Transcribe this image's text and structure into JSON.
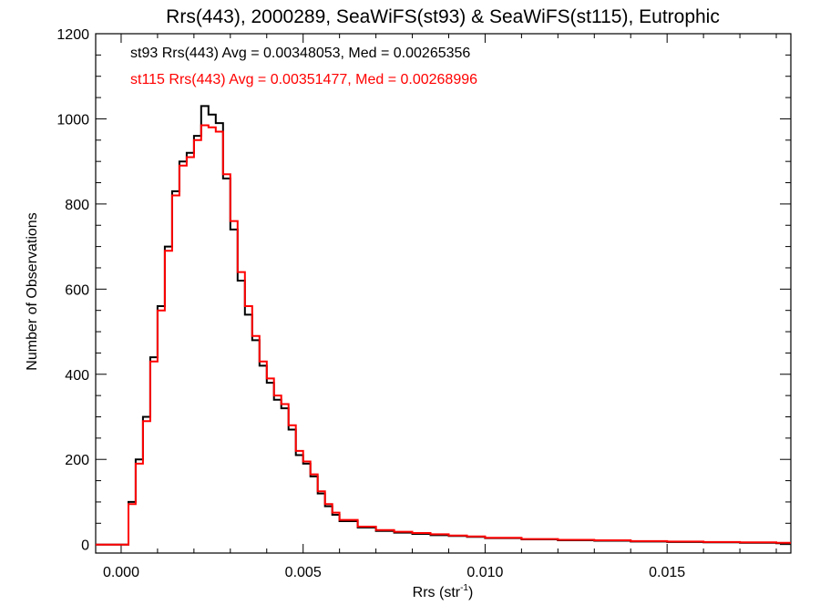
{
  "chart_data": {
    "type": "line",
    "subtype": "step-histogram",
    "title": "Rrs(443), 2000289, SeaWiFS(st93) & SeaWiFS(st115), Eutrophic",
    "xlabel_main": "Rrs (str",
    "xlabel_sup": "-1",
    "xlabel_close": ")",
    "ylabel": "Number of Observations",
    "xlim": [
      -0.0007,
      0.0184
    ],
    "ylim": [
      -20,
      1200
    ],
    "x_ticks": [
      0.0,
      0.005,
      0.01,
      0.015
    ],
    "x_tick_labels": [
      "0.000",
      "0.005",
      "0.010",
      "0.015"
    ],
    "y_ticks": [
      0,
      200,
      400,
      600,
      800,
      1000,
      1200
    ],
    "y_tick_labels": [
      "0",
      "200",
      "400",
      "600",
      "800",
      "1000",
      "1200"
    ],
    "grid": false,
    "legend": "top-left annotations",
    "annotations": [
      {
        "text": "st93 Rrs(443) Avg = 0.00348053, Med = 0.00265356",
        "color": "#000000"
      },
      {
        "text": "st115 Rrs(443) Avg = 0.00351477, Med = 0.00268996",
        "color": "#ff0000"
      }
    ],
    "series": [
      {
        "color": "#000000",
        "x": [
          -0.0007,
          0.0,
          0.0002,
          0.0004,
          0.0006,
          0.0008,
          0.001,
          0.0012,
          0.0014,
          0.0016,
          0.0018,
          0.002,
          0.0022,
          0.0024,
          0.0026,
          0.0028,
          0.003,
          0.0032,
          0.0034,
          0.0036,
          0.0038,
          0.004,
          0.0042,
          0.0044,
          0.0046,
          0.0048,
          0.005,
          0.0052,
          0.0054,
          0.0056,
          0.0058,
          0.006,
          0.0065,
          0.007,
          0.0075,
          0.008,
          0.0085,
          0.009,
          0.0095,
          0.01,
          0.011,
          0.012,
          0.013,
          0.014,
          0.015,
          0.016,
          0.017,
          0.018,
          0.0184
        ],
        "values": [
          0,
          0,
          100,
          200,
          300,
          440,
          560,
          700,
          830,
          900,
          920,
          960,
          1030,
          1010,
          990,
          860,
          740,
          620,
          540,
          480,
          420,
          380,
          340,
          320,
          270,
          210,
          190,
          160,
          120,
          90,
          70,
          55,
          40,
          32,
          28,
          25,
          22,
          20,
          18,
          15,
          12,
          10,
          9,
          7,
          6,
          5,
          4,
          3,
          3
        ]
      },
      {
        "color": "#ff0000",
        "x": [
          -0.0007,
          0.0,
          0.0002,
          0.0004,
          0.0006,
          0.0008,
          0.001,
          0.0012,
          0.0014,
          0.0016,
          0.0018,
          0.002,
          0.0022,
          0.0024,
          0.0026,
          0.0028,
          0.003,
          0.0032,
          0.0034,
          0.0036,
          0.0038,
          0.004,
          0.0042,
          0.0044,
          0.0046,
          0.0048,
          0.005,
          0.0052,
          0.0054,
          0.0056,
          0.0058,
          0.006,
          0.0065,
          0.007,
          0.0075,
          0.008,
          0.0085,
          0.009,
          0.0095,
          0.01,
          0.011,
          0.012,
          0.013,
          0.014,
          0.015,
          0.016,
          0.017,
          0.018,
          0.0184
        ],
        "values": [
          0,
          0,
          95,
          190,
          290,
          430,
          550,
          690,
          820,
          890,
          910,
          950,
          985,
          980,
          970,
          870,
          760,
          640,
          560,
          490,
          430,
          390,
          350,
          330,
          280,
          220,
          195,
          165,
          125,
          95,
          75,
          58,
          42,
          34,
          30,
          27,
          24,
          21,
          19,
          16,
          13,
          11,
          10,
          8,
          7,
          6,
          5,
          4,
          4
        ]
      }
    ]
  }
}
